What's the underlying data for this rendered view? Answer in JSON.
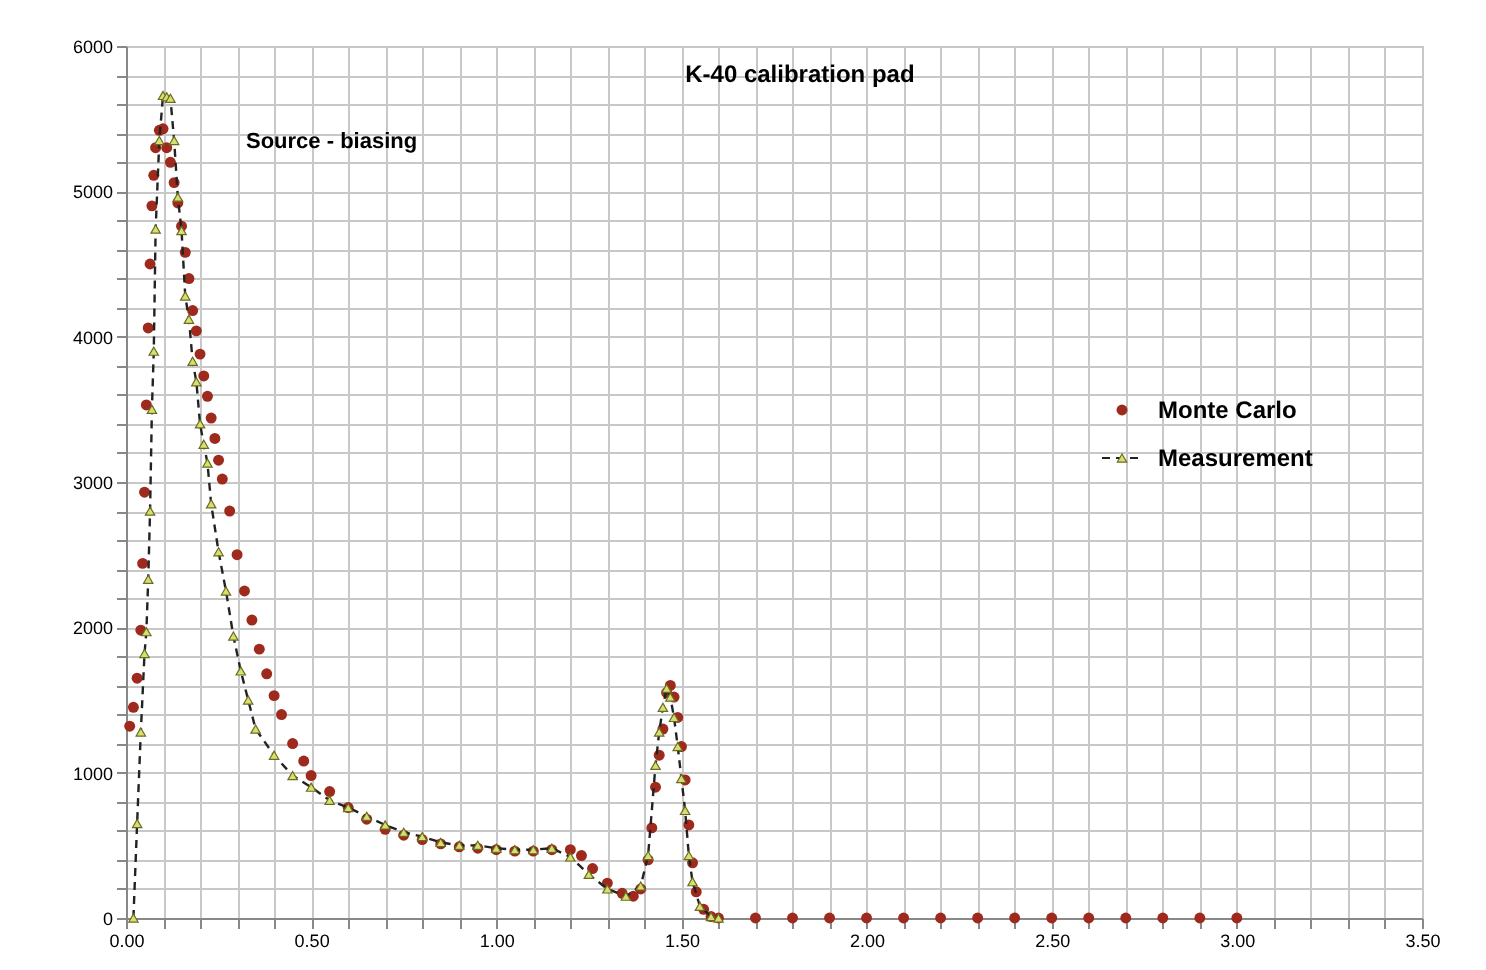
{
  "chart_data": {
    "type": "scatter",
    "title": "K-40 calibration pad",
    "annotations": [
      "Source - biasing"
    ],
    "xlim": [
      0,
      3.5
    ],
    "ylim": [
      0,
      6000
    ],
    "xticks": [
      {
        "value": 0,
        "label": "0.00"
      },
      {
        "value": 0.1,
        "label": null
      },
      {
        "value": 0.2,
        "label": null
      },
      {
        "value": 0.3,
        "label": null
      },
      {
        "value": 0.4,
        "label": null
      },
      {
        "value": 0.5,
        "label": "0.50"
      },
      {
        "value": 0.6,
        "label": null
      },
      {
        "value": 0.7,
        "label": null
      },
      {
        "value": 0.8,
        "label": null
      },
      {
        "value": 0.9,
        "label": null
      },
      {
        "value": 1,
        "label": "1.00"
      },
      {
        "value": 1.1,
        "label": null
      },
      {
        "value": 1.2,
        "label": null
      },
      {
        "value": 1.3,
        "label": null
      },
      {
        "value": 1.4,
        "label": null
      },
      {
        "value": 1.5,
        "label": "1.50"
      },
      {
        "value": 1.6,
        "label": null
      },
      {
        "value": 1.7,
        "label": null
      },
      {
        "value": 1.8,
        "label": null
      },
      {
        "value": 1.9,
        "label": null
      },
      {
        "value": 2,
        "label": "2.00"
      },
      {
        "value": 2.1,
        "label": null
      },
      {
        "value": 2.2,
        "label": null
      },
      {
        "value": 2.3,
        "label": null
      },
      {
        "value": 2.4,
        "label": null
      },
      {
        "value": 2.5,
        "label": "2.50"
      },
      {
        "value": 2.6,
        "label": null
      },
      {
        "value": 2.7,
        "label": null
      },
      {
        "value": 2.8,
        "label": null
      },
      {
        "value": 2.9,
        "label": null
      },
      {
        "value": 3,
        "label": "3.00"
      },
      {
        "value": 3.1,
        "label": null
      },
      {
        "value": 3.2,
        "label": null
      },
      {
        "value": 3.3,
        "label": null
      },
      {
        "value": 3.4,
        "label": null
      },
      {
        "value": 3.5,
        "label": "3.50"
      }
    ],
    "yticks": [
      0,
      {
        "value": 200,
        "label": null
      },
      {
        "value": 400,
        "label": null
      },
      {
        "value": 600,
        "label": null
      },
      {
        "value": 800,
        "label": null
      },
      1000,
      {
        "value": 1200,
        "label": null
      },
      {
        "value": 1400,
        "label": null
      },
      {
        "value": 1600,
        "label": null
      },
      {
        "value": 1800,
        "label": null
      },
      2000,
      {
        "value": 2200,
        "label": null
      },
      {
        "value": 2400,
        "label": null
      },
      {
        "value": 2600,
        "label": null
      },
      {
        "value": 2800,
        "label": null
      },
      3000,
      {
        "value": 3200,
        "label": null
      },
      {
        "value": 3400,
        "label": null
      },
      {
        "value": 3600,
        "label": null
      },
      {
        "value": 3800,
        "label": null
      },
      4000,
      {
        "value": 4200,
        "label": null
      },
      {
        "value": 4400,
        "label": null
      },
      {
        "value": 4600,
        "label": null
      },
      {
        "value": 4800,
        "label": null
      },
      5000,
      {
        "value": 5200,
        "label": null
      },
      {
        "value": 5400,
        "label": null
      },
      {
        "value": 5600,
        "label": null
      },
      {
        "value": 5800,
        "label": null
      },
      6000
    ],
    "grid": true,
    "legend": "right",
    "series": [
      {
        "name": "Monte Carlo",
        "marker": "circle",
        "color": "#9e2a1e",
        "x": [
          0.01,
          0.02,
          0.03,
          0.04,
          0.045,
          0.05,
          0.055,
          0.06,
          0.065,
          0.07,
          0.075,
          0.08,
          0.09,
          0.1,
          0.11,
          0.12,
          0.13,
          0.14,
          0.15,
          0.16,
          0.17,
          0.18,
          0.19,
          0.2,
          0.21,
          0.22,
          0.23,
          0.24,
          0.25,
          0.26,
          0.28,
          0.3,
          0.32,
          0.34,
          0.36,
          0.38,
          0.4,
          0.42,
          0.45,
          0.48,
          0.5,
          0.55,
          0.6,
          0.65,
          0.7,
          0.75,
          0.8,
          0.85,
          0.9,
          0.95,
          1.0,
          1.05,
          1.1,
          1.15,
          1.2,
          1.23,
          1.26,
          1.3,
          1.34,
          1.37,
          1.39,
          1.41,
          1.42,
          1.43,
          1.44,
          1.45,
          1.46,
          1.47,
          1.48,
          1.49,
          1.5,
          1.51,
          1.52,
          1.53,
          1.54,
          1.56,
          1.58,
          1.6,
          1.7,
          1.8,
          1.9,
          2.0,
          2.1,
          2.2,
          2.3,
          2.4,
          2.5,
          2.6,
          2.7,
          2.8,
          2.9,
          3.0
        ],
        "values": [
          1320,
          1450,
          1650,
          1980,
          2440,
          2930,
          3530,
          4060,
          4500,
          4900,
          5110,
          5300,
          5420,
          5430,
          5300,
          5200,
          5060,
          4920,
          4760,
          4580,
          4400,
          4180,
          4040,
          3880,
          3730,
          3590,
          3440,
          3300,
          3150,
          3020,
          2800,
          2500,
          2250,
          2050,
          1850,
          1680,
          1530,
          1400,
          1200,
          1080,
          980,
          870,
          760,
          680,
          610,
          570,
          540,
          510,
          490,
          480,
          470,
          460,
          460,
          470,
          470,
          430,
          340,
          240,
          170,
          150,
          200,
          400,
          620,
          900,
          1120,
          1300,
          1550,
          1600,
          1520,
          1380,
          1180,
          950,
          640,
          380,
          180,
          60,
          10,
          0,
          0,
          0,
          0,
          0,
          0,
          0,
          0,
          0,
          0,
          0,
          0,
          0,
          0,
          0
        ]
      },
      {
        "name": "Measurement",
        "type": "line",
        "marker": "triangle",
        "line_style": "dashed",
        "color": "#d6e070",
        "x": [
          0.02,
          0.03,
          0.04,
          0.05,
          0.055,
          0.06,
          0.065,
          0.07,
          0.075,
          0.08,
          0.09,
          0.1,
          0.11,
          0.12,
          0.13,
          0.14,
          0.15,
          0.16,
          0.17,
          0.18,
          0.19,
          0.2,
          0.21,
          0.22,
          0.23,
          0.25,
          0.27,
          0.29,
          0.31,
          0.33,
          0.35,
          0.4,
          0.45,
          0.5,
          0.55,
          0.6,
          0.65,
          0.7,
          0.75,
          0.8,
          0.85,
          0.9,
          0.95,
          1.0,
          1.05,
          1.1,
          1.15,
          1.2,
          1.25,
          1.3,
          1.35,
          1.39,
          1.41,
          1.43,
          1.44,
          1.45,
          1.46,
          1.47,
          1.48,
          1.49,
          1.5,
          1.51,
          1.52,
          1.53,
          1.55,
          1.58,
          1.6
        ],
        "values": [
          0,
          650,
          1280,
          1820,
          1970,
          2330,
          2800,
          3500,
          3900,
          4740,
          5350,
          5660,
          5650,
          5640,
          5350,
          4960,
          4730,
          4280,
          4120,
          3830,
          3690,
          3400,
          3260,
          3130,
          2850,
          2520,
          2250,
          1940,
          1700,
          1500,
          1300,
          1120,
          980,
          900,
          810,
          760,
          700,
          640,
          590,
          560,
          520,
          500,
          500,
          480,
          470,
          470,
          480,
          420,
          300,
          200,
          150,
          220,
          430,
          1050,
          1280,
          1450,
          1580,
          1520,
          1380,
          1180,
          960,
          740,
          430,
          250,
          80,
          10,
          0
        ]
      }
    ]
  }
}
